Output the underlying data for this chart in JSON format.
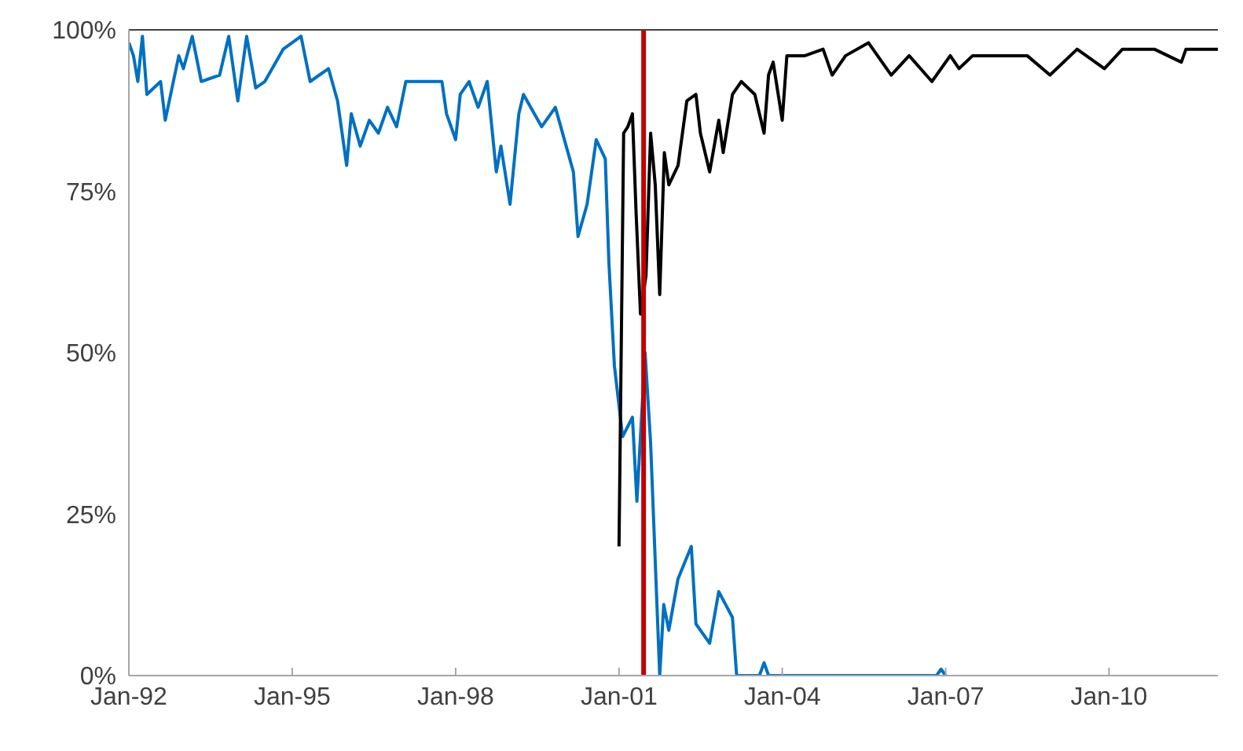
{
  "chart_data": {
    "type": "line",
    "marker": "none",
    "xlim": [
      "1992-01",
      "2012-01"
    ],
    "xticks": [
      {
        "value": "1992-01",
        "label": "Jan-92"
      },
      {
        "value": "1995-01",
        "label": "Jan-95"
      },
      {
        "value": "1998-01",
        "label": "Jan-98"
      },
      {
        "value": "2001-01",
        "label": "Jan-01"
      },
      {
        "value": "2004-01",
        "label": "Jan-04"
      },
      {
        "value": "2007-01",
        "label": "Jan-07"
      },
      {
        "value": "2010-01",
        "label": "Jan-10"
      }
    ],
    "ylim": [
      0,
      100
    ],
    "yticks": [
      {
        "value": 0,
        "label": "0%"
      },
      {
        "value": 25,
        "label": "25%"
      },
      {
        "value": 50,
        "label": "50%"
      },
      {
        "value": 75,
        "label": "75%"
      },
      {
        "value": 100,
        "label": "100%"
      }
    ],
    "ref_lines": [
      {
        "axis": "x",
        "value": "2001-06-15",
        "color": "#c00000"
      }
    ],
    "series": [
      {
        "color": "#0070c0",
        "x": [
          "1992-01",
          "1992-02",
          "1992-03",
          "1992-04",
          "1992-05",
          "1992-08",
          "1992-09",
          "1992-12",
          "1993-01",
          "1993-03",
          "1993-05",
          "1993-09",
          "1993-11",
          "1994-01",
          "1994-03",
          "1994-05",
          "1994-07",
          "1994-11",
          "1995-03",
          "1995-05",
          "1995-09",
          "1995-11",
          "1996-01",
          "1996-02",
          "1996-04",
          "1996-06",
          "1996-08",
          "1996-10",
          "1996-12",
          "1997-02",
          "1997-06",
          "1997-10",
          "1997-11",
          "1998-01",
          "1998-02",
          "1998-04",
          "1998-06",
          "1998-08",
          "1998-10",
          "1998-11",
          "1999-01",
          "1999-03",
          "1999-04",
          "1999-08",
          "1999-11",
          "2000-03",
          "2000-04",
          "2000-06",
          "2000-08",
          "2000-10",
          "2000-10-25",
          "2000-12",
          "2001-01-25",
          "2001-04",
          "2001-05",
          "2001-06-25",
          "2001-08",
          "2001-10",
          "2001-10-28",
          "2001-12",
          "2002-02",
          "2002-05",
          "2002-06",
          "2002-09",
          "2002-11",
          "2003-02",
          "2003-03",
          "2003-08",
          "2003-09",
          "2003-10",
          "2006-11",
          "2006-12",
          "2007-01"
        ],
        "values": [
          98,
          96,
          92,
          99,
          90,
          92,
          86,
          96,
          94,
          99,
          92,
          93,
          99,
          89,
          99,
          91,
          92,
          97,
          99,
          92,
          94,
          89,
          79,
          87,
          82,
          86,
          84,
          88,
          85,
          92,
          92,
          92,
          87,
          83,
          90,
          92,
          88,
          92,
          78,
          82,
          73,
          87,
          90,
          85,
          88,
          78,
          68,
          73,
          83,
          80,
          64,
          48,
          37,
          40,
          27,
          50,
          36,
          0,
          11,
          7,
          15,
          20,
          8,
          5,
          13,
          9,
          0,
          0,
          2,
          0,
          0,
          1,
          0
        ]
      },
      {
        "color": "#000000",
        "x": [
          "2001-01-01",
          "2001-02",
          "2001-03",
          "2001-04",
          "2001-04-25",
          "2001-05-25",
          "2001-07",
          "2001-08",
          "2001-09",
          "2001-10",
          "2001-11",
          "2001-12",
          "2002-02",
          "2002-04",
          "2002-06",
          "2002-07",
          "2002-09",
          "2002-11",
          "2002-12",
          "2003-02",
          "2003-04",
          "2003-07",
          "2003-09",
          "2003-10",
          "2003-11",
          "2004-01",
          "2004-02",
          "2004-06",
          "2004-10",
          "2004-12",
          "2005-03",
          "2005-08",
          "2006-01",
          "2006-05",
          "2006-10",
          "2007-02",
          "2007-04",
          "2007-07",
          "2008-01",
          "2008-07",
          "2008-12",
          "2009-06",
          "2009-12",
          "2010-04",
          "2010-11",
          "2011-05",
          "2011-06",
          "2012-01"
        ],
        "values": [
          20,
          84,
          85,
          87,
          72,
          56,
          62,
          84,
          76,
          59,
          81,
          76,
          79,
          89,
          90,
          84,
          78,
          86,
          81,
          90,
          92,
          90,
          84,
          93,
          95,
          86,
          96,
          96,
          97,
          93,
          96,
          98,
          93,
          96,
          92,
          96,
          94,
          96,
          96,
          96,
          93,
          97,
          94,
          97,
          97,
          95,
          97,
          97
        ]
      }
    ]
  }
}
